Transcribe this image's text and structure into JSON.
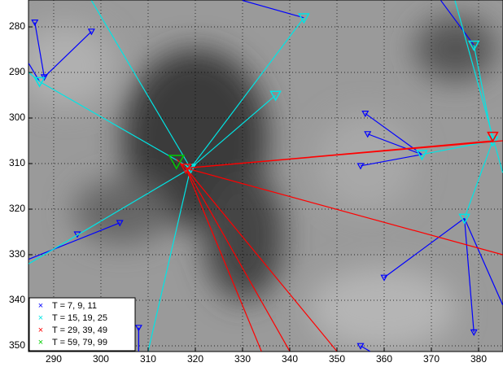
{
  "chart_data": {
    "type": "line",
    "xlim": [
      284.66,
      385.17
    ],
    "ylim": [
      274.1,
      351.25
    ],
    "y_reversed": true,
    "xticks": [
      290,
      300,
      310,
      320,
      330,
      340,
      350,
      360,
      370,
      380
    ],
    "yticks": [
      280,
      290,
      300,
      310,
      320,
      330,
      340,
      350
    ],
    "grid": true,
    "legend": "lower left",
    "series": [
      {
        "name": "T = 7, 9, 11",
        "color": "#0000ff",
        "x": [
          286,
          288,
          null,
          298,
          288,
          null,
          284.7,
          287,
          null,
          330,
          343,
          null,
          304,
          284.7,
          null,
          308,
          308,
          null,
          356,
          368,
          null,
          356.5,
          368,
          null,
          355,
          368,
          null,
          377,
          360,
          null,
          377,
          379,
          null,
          377,
          385.1,
          null,
          372,
          379,
          null,
          355,
          357
        ],
        "values": [
          279,
          291,
          null,
          281,
          291,
          null,
          288,
          292,
          null,
          274.2,
          278,
          null,
          323,
          331,
          null,
          346,
          351.2,
          null,
          299,
          308,
          null,
          303.5,
          308,
          null,
          310.5,
          308,
          null,
          322,
          335,
          null,
          322,
          347,
          null,
          322,
          341,
          null,
          274.2,
          284,
          null,
          350,
          351.2
        ],
        "marker_x": [
          286,
          298,
          288,
          304,
          295,
          308,
          356,
          356.5,
          355,
          360,
          379,
          355
        ],
        "marker_y": [
          279,
          281,
          291,
          323,
          325.5,
          346,
          299,
          303.5,
          310.5,
          335,
          347,
          350
        ]
      },
      {
        "name": "T = 15, 19, 25",
        "color": "#00e5e5",
        "x": [
          319,
          287,
          null,
          319,
          298,
          null,
          319,
          310,
          null,
          319,
          343,
          null,
          319,
          337,
          null,
          319,
          284.7,
          null,
          284.7,
          287,
          null,
          368,
          383,
          null,
          377,
          383,
          null,
          379,
          383,
          null,
          375,
          385.1
        ],
        "values": [
          311,
          292,
          null,
          311,
          274.2,
          null,
          311,
          351.2,
          null,
          311,
          278,
          null,
          311,
          295,
          null,
          311,
          332,
          null,
          290,
          292,
          null,
          308,
          305,
          null,
          322,
          305,
          null,
          284,
          305,
          null,
          274.2,
          312
        ],
        "marker_x": [
          287,
          343,
          337,
          319,
          368,
          377,
          379,
          383
        ],
        "marker_y": [
          292,
          278,
          295,
          311,
          308,
          322,
          284,
          305
        ]
      },
      {
        "name": "T = 29, 39, 49",
        "color": "#ff0000",
        "x": [
          318,
          383,
          null,
          318,
          385.1,
          null,
          318,
          385.1,
          null,
          318,
          340,
          null,
          318,
          350,
          null,
          318,
          334,
          null,
          316,
          318
        ],
        "values": [
          311,
          305,
          null,
          311,
          305,
          null,
          311,
          330,
          null,
          311,
          351.2,
          null,
          311,
          351.2,
          null,
          311,
          351.2,
          null,
          309,
          311
        ],
        "marker_x": [
          318,
          383
        ],
        "marker_y": [
          311,
          304
        ]
      },
      {
        "name": "T = 59, 79, 99",
        "color": "#00cc00",
        "x": [],
        "values": [],
        "marker_x": [
          316
        ],
        "marker_y": [
          309.5
        ]
      }
    ]
  }
}
